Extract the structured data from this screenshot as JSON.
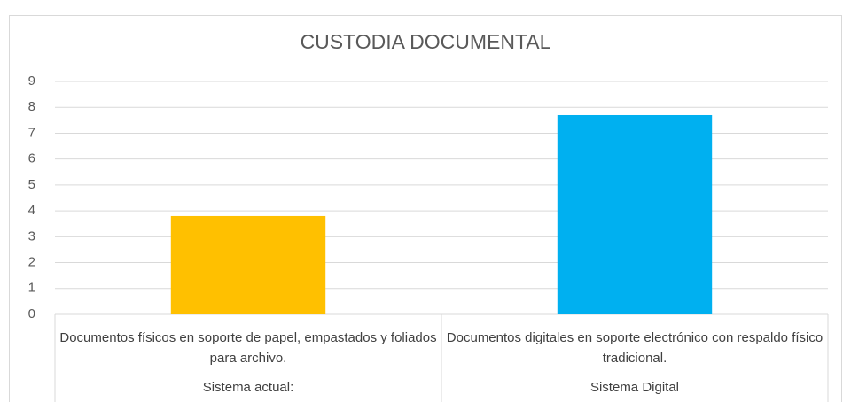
{
  "chart_data": {
    "type": "bar",
    "title": "CUSTODIA DOCUMENTAL",
    "categories": [
      "Documentos físicos en soporte de papel, empastados y foliados para archivo.",
      "Documentos digitales en soporte electrónico con respaldo físico tradicional."
    ],
    "groups": [
      "Sistema actual:",
      "Sistema Digital"
    ],
    "values": [
      3.8,
      7.7
    ],
    "colors": [
      "#FFC000",
      "#00B0F0"
    ],
    "ylim": [
      0,
      9
    ],
    "yticks": [
      0,
      1,
      2,
      3,
      4,
      5,
      6,
      7,
      8,
      9
    ],
    "grid": true
  }
}
